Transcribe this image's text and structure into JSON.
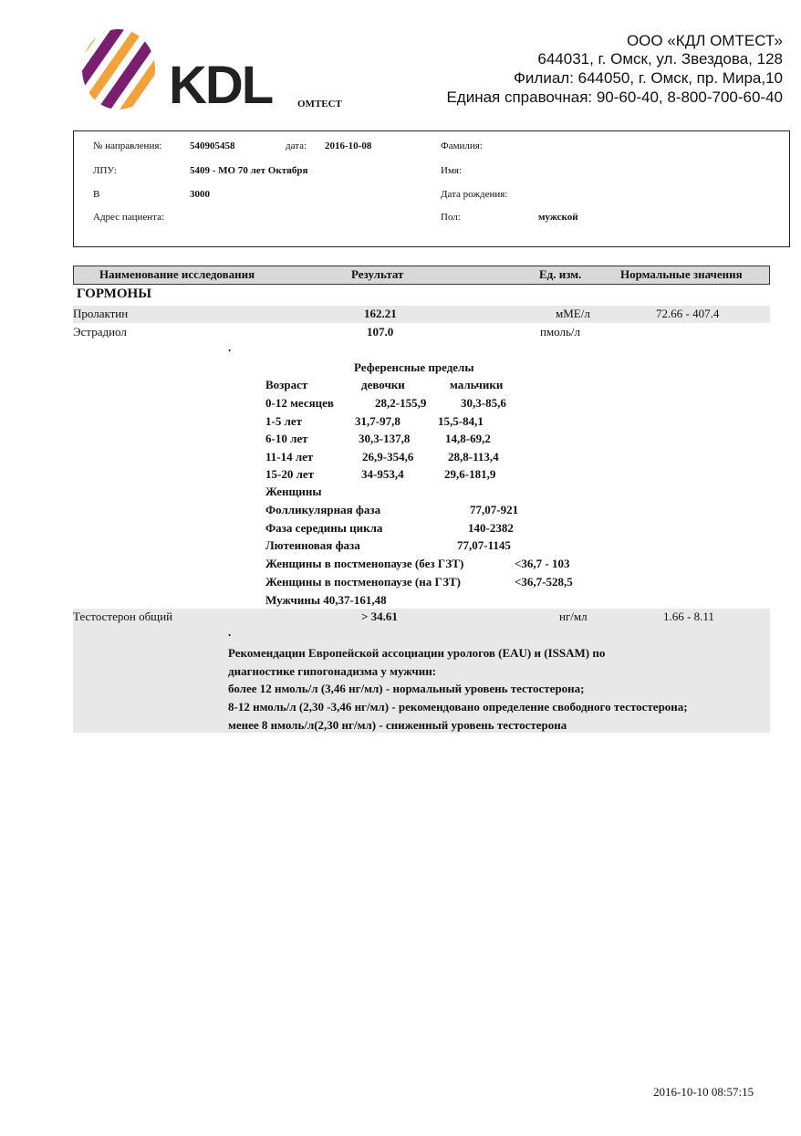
{
  "header": {
    "logo_text": "KDL",
    "logo_sub": "ОМТЕСТ",
    "org": "ООО «КДЛ ОМТЕСТ»",
    "address": "644031,  г. Омск, ул. Звездова, 128",
    "branch": "Филиал: 644050,  г. Омск, пр. Мира,10",
    "phone": "Единая справочная: 90-60-40, 8-800-700-60-40"
  },
  "patient": {
    "referral_label": "№ направления:",
    "referral": "540905458",
    "date_label": "дата:",
    "date": "2016-10-08",
    "lpu_label": "ЛПУ:",
    "lpu": "5409 - МО 70 лет Октября",
    "b_label": "В",
    "b": "3000",
    "address_label": "Адрес пациента:",
    "surname_label": "Фамилия:",
    "name_label": "Имя:",
    "dob_label": "Дата рождения:",
    "sex_label": "Пол:",
    "sex": "мужской"
  },
  "table": {
    "columns": [
      "Наименование исследования",
      "Результат",
      "Ед. изм.",
      "Нормальные значения"
    ],
    "section": "ГОРМОНЫ",
    "rows": [
      {
        "name": "Пролактин",
        "result": "162.21",
        "unit": "мМЕ/л",
        "normal": "72.66 - 407.4"
      },
      {
        "name": "Эстрадиол",
        "result": "107.0",
        "unit": "пмоль/л",
        "normal": ""
      },
      {
        "name": "Тестостерон общий",
        "result": "> 34.61",
        "unit": "нг/мл",
        "normal": "1.66 - 8.11"
      }
    ]
  },
  "estradiol_note": {
    "dot": ".",
    "title": "Референсные пределы",
    "head": [
      "Возраст",
      "девочки",
      "мальчики"
    ],
    "ages": [
      [
        "0-12 месяцев",
        "28,2-155,9",
        "30,3-85,6"
      ],
      [
        "1-5 лет",
        "31,7-97,8",
        "15,5-84,1"
      ],
      [
        "6-10 лет",
        "30,3-137,8",
        "14,8-69,2"
      ],
      [
        "11-14 лет",
        "26,9-354,6",
        "28,8-113,4"
      ],
      [
        "15-20 лет",
        "34-953,4",
        "29,6-181,9"
      ]
    ],
    "women": "Женщины",
    "phases": [
      [
        "Фолликулярная фаза",
        "77,07-921"
      ],
      [
        "Фаза середины цикла",
        "140-2382"
      ],
      [
        "Лютеиновая фаза",
        "77,07-1145"
      ],
      [
        "Женщины в постменопаузе (без ГЗТ)",
        "<36,7 - 103"
      ],
      [
        "Женщины в постменопаузе (на ГЗТ)",
        "<36,7-528,5"
      ]
    ],
    "men": "Мужчины  40,37-161,48"
  },
  "testosterone_note": {
    "dot": ".",
    "lines": [
      "Рекомендации Европейской ассоциации урологов (EAU) и (ISSAM) по",
      "диагностике гипогонадизма у мужчин:",
      "более 12 нмоль/л (3,46 нг/мл) - нормальный уровень тестостерона;",
      "8-12 нмоль/л (2,30 -3,46 нг/мл) - рекомендовано определение свободного тестостерона;",
      "менее 8 нмоль/л(2,30 нг/мл) - сниженный уровень тестостерона"
    ]
  },
  "footer": {
    "timestamp": "2016-10-10 08:57:15"
  },
  "colors": {
    "logo_purple": "#7a1f6e",
    "logo_orange": "#f2a23a",
    "header_grey": "#d9d9d9",
    "row_grey": "#e8e8e8"
  }
}
